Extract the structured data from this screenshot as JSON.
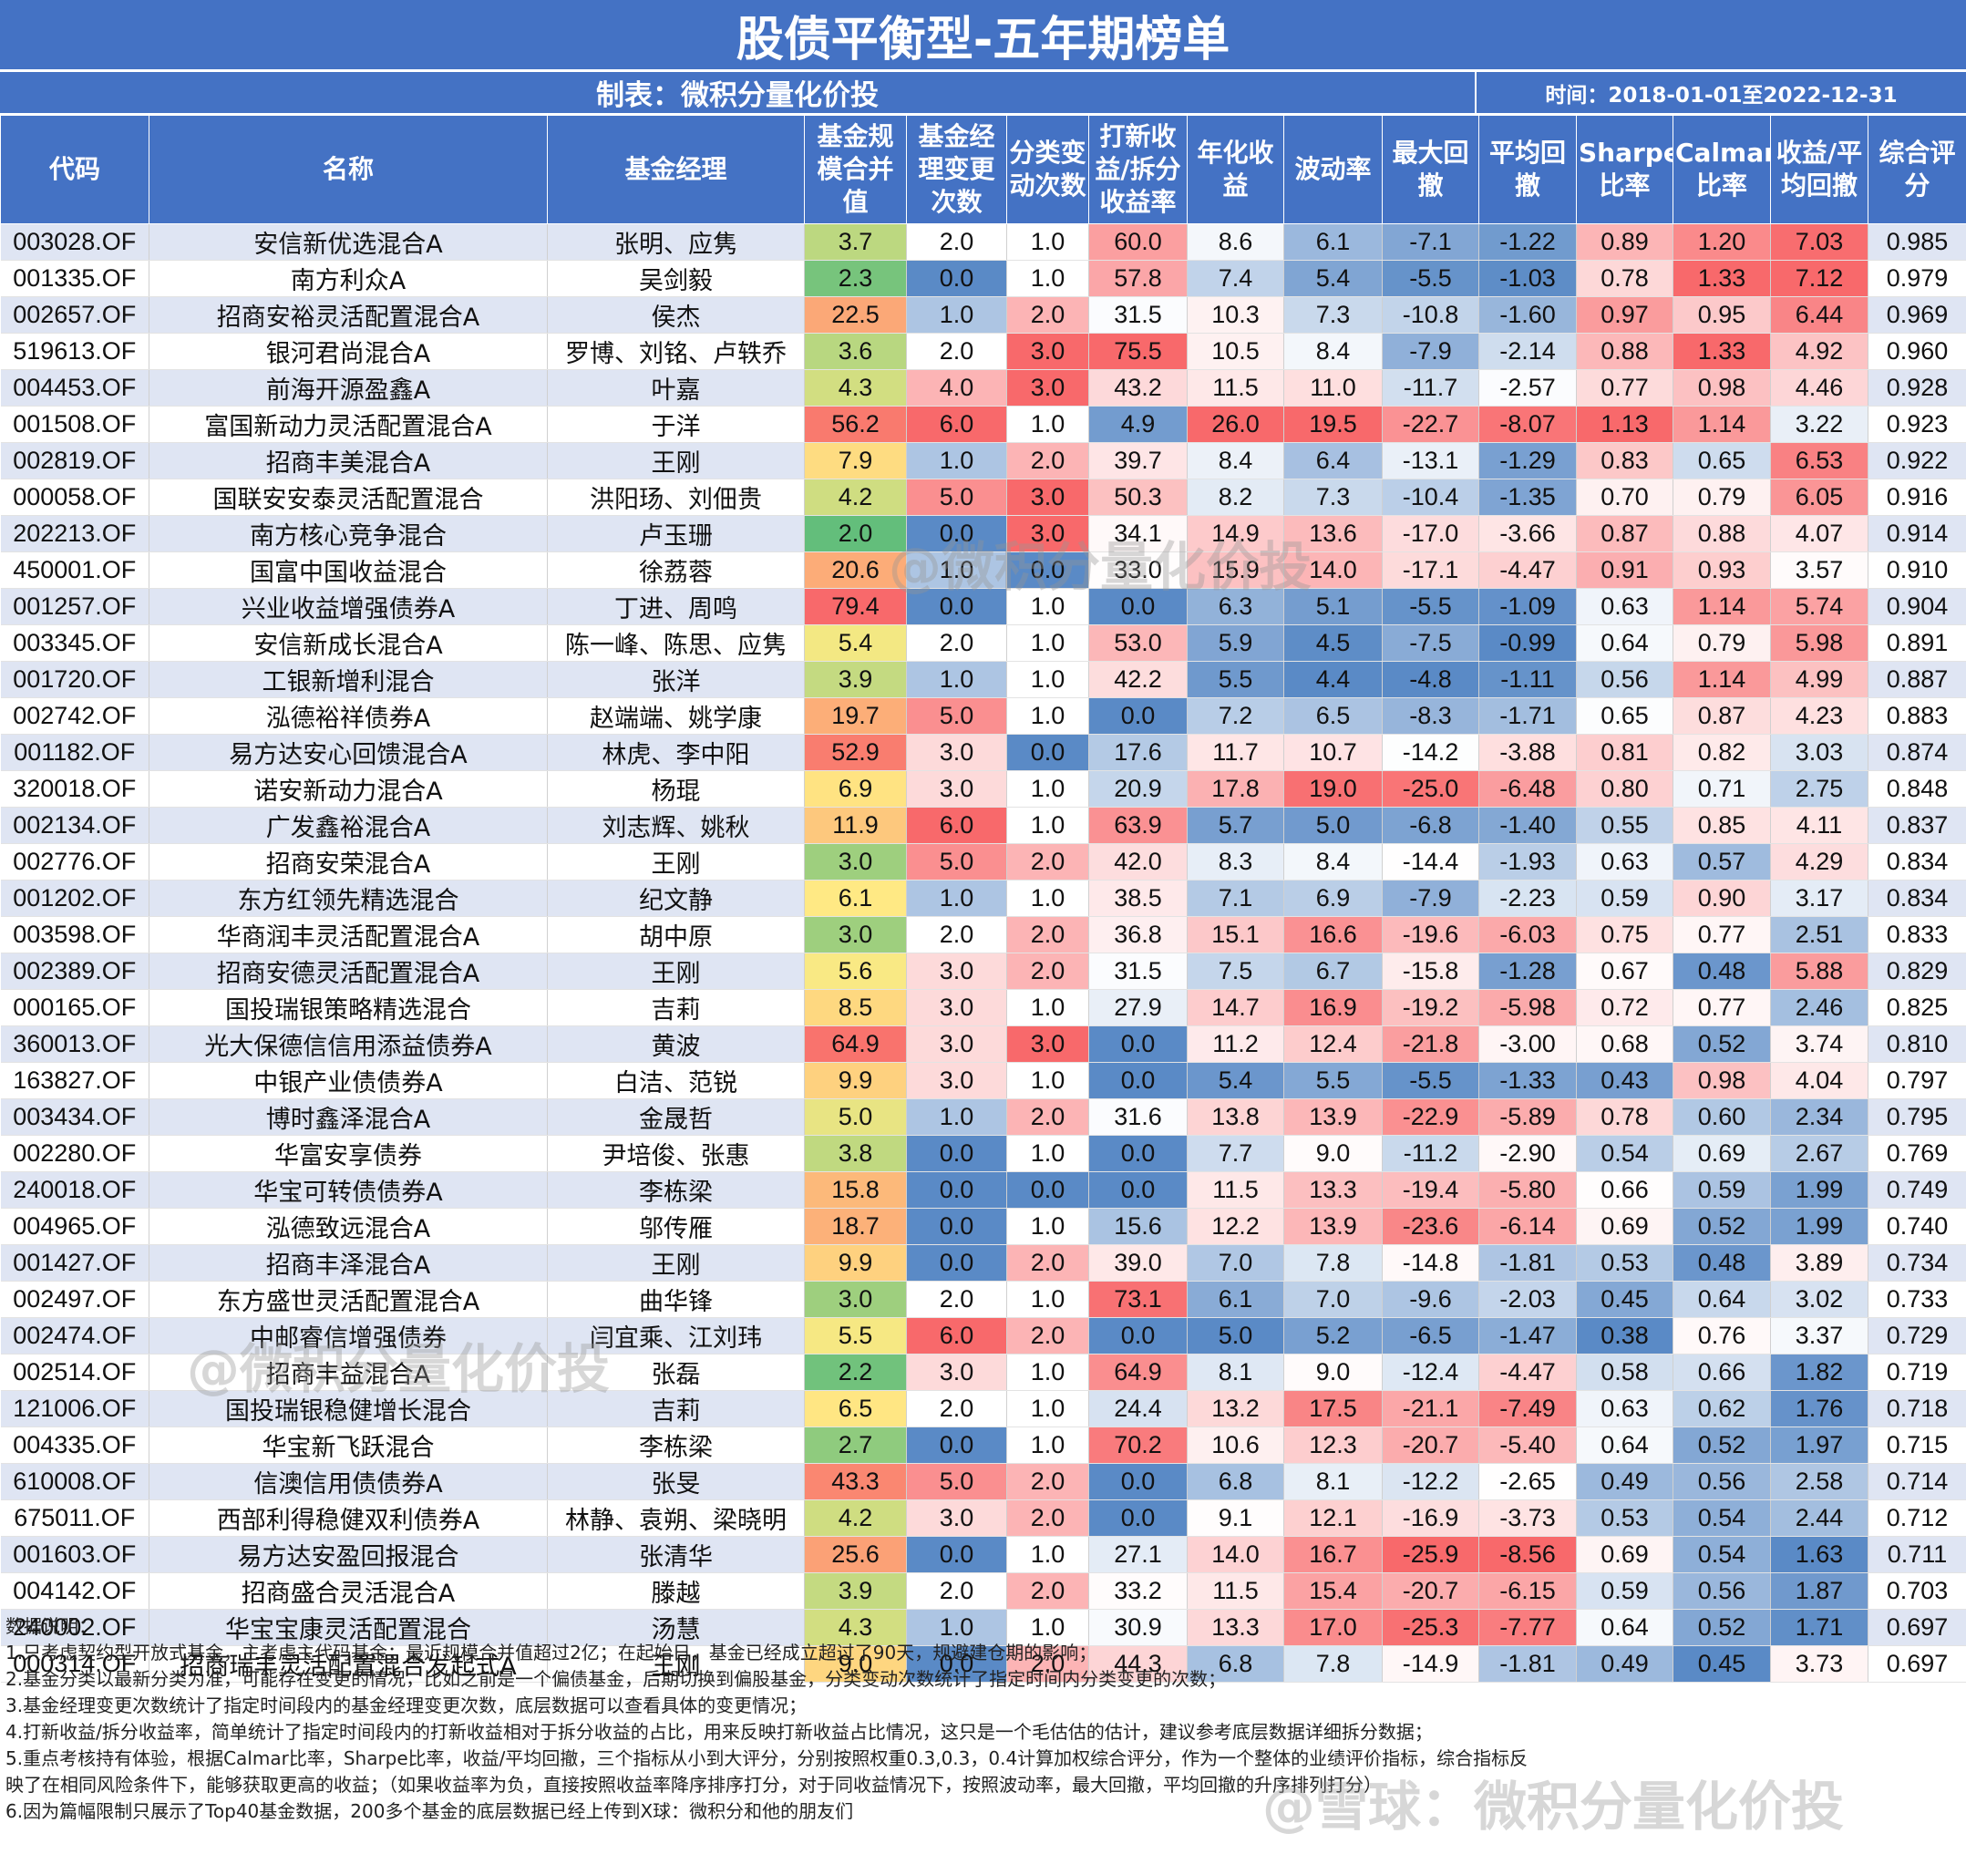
{
  "title": "股债平衡型-五年期榜单",
  "maker": "制表：微积分量化价投",
  "time": "时间：2018-01-01至2022-12-31",
  "columns": [
    "代码",
    "名称",
    "基金经理",
    "基金规模合并值",
    "基金经理变更次数",
    "分类变动次数",
    "打新收益/拆分收益率",
    "年化收益",
    "波动率",
    "最大回撤",
    "平均回撤",
    "Sharpe比率",
    "Calmar比率",
    "收益/平均回撤",
    "综合评分"
  ],
  "rows": [
    [
      "003028.OF",
      "安信新优选混合A",
      "张明、应隽",
      "3.7",
      "2.0",
      "1.0",
      "60.0",
      "8.6",
      "6.1",
      "-7.1",
      "-1.22",
      "0.89",
      "1.20",
      "7.03",
      "0.985"
    ],
    [
      "001335.OF",
      "南方利众A",
      "吴剑毅",
      "2.3",
      "0.0",
      "1.0",
      "57.8",
      "7.4",
      "5.4",
      "-5.5",
      "-1.03",
      "0.78",
      "1.33",
      "7.12",
      "0.979"
    ],
    [
      "002657.OF",
      "招商安裕灵活配置混合A",
      "侯杰",
      "22.5",
      "1.0",
      "2.0",
      "31.5",
      "10.3",
      "7.3",
      "-10.8",
      "-1.60",
      "0.97",
      "0.95",
      "6.44",
      "0.969"
    ],
    [
      "519613.OF",
      "银河君尚混合A",
      "罗博、刘铭、卢轶乔",
      "3.6",
      "2.0",
      "3.0",
      "75.5",
      "10.5",
      "8.4",
      "-7.9",
      "-2.14",
      "0.88",
      "1.33",
      "4.92",
      "0.960"
    ],
    [
      "004453.OF",
      "前海开源盈鑫A",
      "叶嘉",
      "4.3",
      "4.0",
      "3.0",
      "43.2",
      "11.5",
      "11.0",
      "-11.7",
      "-2.57",
      "0.77",
      "0.98",
      "4.46",
      "0.928"
    ],
    [
      "001508.OF",
      "富国新动力灵活配置混合A",
      "于洋",
      "56.2",
      "6.0",
      "1.0",
      "4.9",
      "26.0",
      "19.5",
      "-22.7",
      "-8.07",
      "1.13",
      "1.14",
      "3.22",
      "0.923"
    ],
    [
      "002819.OF",
      "招商丰美混合A",
      "王刚",
      "7.9",
      "1.0",
      "2.0",
      "39.7",
      "8.4",
      "6.4",
      "-13.1",
      "-1.29",
      "0.83",
      "0.65",
      "6.53",
      "0.922"
    ],
    [
      "000058.OF",
      "国联安安泰灵活配置混合",
      "洪阳玚、刘佃贵",
      "4.2",
      "5.0",
      "3.0",
      "50.3",
      "8.2",
      "7.3",
      "-10.4",
      "-1.35",
      "0.70",
      "0.79",
      "6.05",
      "0.916"
    ],
    [
      "202213.OF",
      "南方核心竞争混合",
      "卢玉珊",
      "2.0",
      "0.0",
      "3.0",
      "34.1",
      "14.9",
      "13.6",
      "-17.0",
      "-3.66",
      "0.87",
      "0.88",
      "4.07",
      "0.914"
    ],
    [
      "450001.OF",
      "国富中国收益混合",
      "徐荔蓉",
      "20.6",
      "1.0",
      "0.0",
      "33.0",
      "15.9",
      "14.0",
      "-17.1",
      "-4.47",
      "0.91",
      "0.93",
      "3.57",
      "0.910"
    ],
    [
      "001257.OF",
      "兴业收益增强债券A",
      "丁进、周鸣",
      "79.4",
      "0.0",
      "1.0",
      "0.0",
      "6.3",
      "5.1",
      "-5.5",
      "-1.09",
      "0.63",
      "1.14",
      "5.74",
      "0.904"
    ],
    [
      "003345.OF",
      "安信新成长混合A",
      "陈一峰、陈思、应隽",
      "5.4",
      "2.0",
      "1.0",
      "53.0",
      "5.9",
      "4.5",
      "-7.5",
      "-0.99",
      "0.64",
      "0.79",
      "5.98",
      "0.891"
    ],
    [
      "001720.OF",
      "工银新增利混合",
      "张洋",
      "3.9",
      "1.0",
      "1.0",
      "42.2",
      "5.5",
      "4.4",
      "-4.8",
      "-1.11",
      "0.56",
      "1.14",
      "4.99",
      "0.887"
    ],
    [
      "002742.OF",
      "泓德裕祥债券A",
      "赵端端、姚学康",
      "19.7",
      "5.0",
      "1.0",
      "0.0",
      "7.2",
      "6.5",
      "-8.3",
      "-1.71",
      "0.65",
      "0.87",
      "4.23",
      "0.883"
    ],
    [
      "001182.OF",
      "易方达安心回馈混合A",
      "林虎、李中阳",
      "52.9",
      "3.0",
      "0.0",
      "17.6",
      "11.7",
      "10.7",
      "-14.2",
      "-3.88",
      "0.81",
      "0.82",
      "3.03",
      "0.874"
    ],
    [
      "320018.OF",
      "诺安新动力混合A",
      "杨琨",
      "6.9",
      "3.0",
      "1.0",
      "20.9",
      "17.8",
      "19.0",
      "-25.0",
      "-6.48",
      "0.80",
      "0.71",
      "2.75",
      "0.848"
    ],
    [
      "002134.OF",
      "广发鑫裕混合A",
      "刘志辉、姚秋",
      "11.9",
      "6.0",
      "1.0",
      "63.9",
      "5.7",
      "5.0",
      "-6.8",
      "-1.40",
      "0.55",
      "0.85",
      "4.11",
      "0.837"
    ],
    [
      "002776.OF",
      "招商安荣混合A",
      "王刚",
      "3.0",
      "5.0",
      "2.0",
      "42.0",
      "8.3",
      "8.4",
      "-14.4",
      "-1.93",
      "0.63",
      "0.57",
      "4.29",
      "0.834"
    ],
    [
      "001202.OF",
      "东方红领先精选混合",
      "纪文静",
      "6.1",
      "1.0",
      "1.0",
      "38.5",
      "7.1",
      "6.9",
      "-7.9",
      "-2.23",
      "0.59",
      "0.90",
      "3.17",
      "0.834"
    ],
    [
      "003598.OF",
      "华商润丰灵活配置混合A",
      "胡中原",
      "3.0",
      "2.0",
      "2.0",
      "36.8",
      "15.1",
      "16.6",
      "-19.6",
      "-6.03",
      "0.75",
      "0.77",
      "2.51",
      "0.833"
    ],
    [
      "002389.OF",
      "招商安德灵活配置混合A",
      "王刚",
      "5.6",
      "3.0",
      "2.0",
      "31.5",
      "7.5",
      "6.7",
      "-15.8",
      "-1.28",
      "0.67",
      "0.48",
      "5.88",
      "0.829"
    ],
    [
      "000165.OF",
      "国投瑞银策略精选混合",
      "吉莉",
      "8.5",
      "3.0",
      "1.0",
      "27.9",
      "14.7",
      "16.9",
      "-19.2",
      "-5.98",
      "0.72",
      "0.77",
      "2.46",
      "0.825"
    ],
    [
      "360013.OF",
      "光大保德信信用添益债券A",
      "黄波",
      "64.9",
      "3.0",
      "3.0",
      "0.0",
      "11.2",
      "12.4",
      "-21.8",
      "-3.00",
      "0.68",
      "0.52",
      "3.74",
      "0.810"
    ],
    [
      "163827.OF",
      "中银产业债债券A",
      "白洁、范锐",
      "9.9",
      "3.0",
      "1.0",
      "0.0",
      "5.4",
      "5.5",
      "-5.5",
      "-1.33",
      "0.43",
      "0.98",
      "4.04",
      "0.797"
    ],
    [
      "003434.OF",
      "博时鑫泽混合A",
      "金晟哲",
      "5.0",
      "1.0",
      "2.0",
      "31.6",
      "13.8",
      "13.9",
      "-22.9",
      "-5.89",
      "0.78",
      "0.60",
      "2.34",
      "0.795"
    ],
    [
      "002280.OF",
      "华富安享债券",
      "尹培俊、张惠",
      "3.8",
      "0.0",
      "1.0",
      "0.0",
      "7.7",
      "9.0",
      "-11.2",
      "-2.90",
      "0.54",
      "0.69",
      "2.67",
      "0.769"
    ],
    [
      "240018.OF",
      "华宝可转债债券A",
      "李栋梁",
      "15.8",
      "0.0",
      "0.0",
      "0.0",
      "11.5",
      "13.3",
      "-19.4",
      "-5.80",
      "0.66",
      "0.59",
      "1.99",
      "0.749"
    ],
    [
      "004965.OF",
      "泓德致远混合A",
      "邬传雁",
      "18.7",
      "0.0",
      "1.0",
      "15.6",
      "12.2",
      "13.9",
      "-23.6",
      "-6.14",
      "0.69",
      "0.52",
      "1.99",
      "0.740"
    ],
    [
      "001427.OF",
      "招商丰泽混合A",
      "王刚",
      "9.9",
      "0.0",
      "2.0",
      "39.0",
      "7.0",
      "7.8",
      "-14.8",
      "-1.81",
      "0.53",
      "0.48",
      "3.89",
      "0.734"
    ],
    [
      "002497.OF",
      "东方盛世灵活配置混合A",
      "曲华锋",
      "3.0",
      "2.0",
      "1.0",
      "73.1",
      "6.1",
      "7.0",
      "-9.6",
      "-2.03",
      "0.45",
      "0.64",
      "3.02",
      "0.733"
    ],
    [
      "002474.OF",
      "中邮睿信增强债券",
      "闫宜乘、江刘玮",
      "5.5",
      "6.0",
      "2.0",
      "0.0",
      "5.0",
      "5.2",
      "-6.5",
      "-1.47",
      "0.38",
      "0.76",
      "3.37",
      "0.729"
    ],
    [
      "002514.OF",
      "招商丰益混合A",
      "张磊",
      "2.2",
      "3.0",
      "1.0",
      "64.9",
      "8.1",
      "9.0",
      "-12.4",
      "-4.47",
      "0.58",
      "0.66",
      "1.82",
      "0.719"
    ],
    [
      "121006.OF",
      "国投瑞银稳健增长混合",
      "吉莉",
      "6.5",
      "2.0",
      "1.0",
      "24.4",
      "13.2",
      "17.5",
      "-21.1",
      "-7.49",
      "0.63",
      "0.62",
      "1.76",
      "0.718"
    ],
    [
      "004335.OF",
      "华宝新飞跃混合",
      "李栋梁",
      "2.7",
      "0.0",
      "1.0",
      "70.2",
      "10.6",
      "12.3",
      "-20.7",
      "-5.40",
      "0.64",
      "0.52",
      "1.97",
      "0.715"
    ],
    [
      "610008.OF",
      "信澳信用债债券A",
      "张旻",
      "43.3",
      "5.0",
      "2.0",
      "0.0",
      "6.8",
      "8.1",
      "-12.2",
      "-2.65",
      "0.49",
      "0.56",
      "2.58",
      "0.714"
    ],
    [
      "675011.OF",
      "西部利得稳健双利债券A",
      "林静、袁朔、梁晓明",
      "4.2",
      "3.0",
      "2.0",
      "0.0",
      "9.1",
      "12.1",
      "-16.9",
      "-3.73",
      "0.53",
      "0.54",
      "2.44",
      "0.712"
    ],
    [
      "001603.OF",
      "易方达安盈回报混合",
      "张清华",
      "25.6",
      "0.0",
      "1.0",
      "27.1",
      "14.0",
      "16.7",
      "-25.9",
      "-8.56",
      "0.69",
      "0.54",
      "1.63",
      "0.711"
    ],
    [
      "004142.OF",
      "招商盛合灵活混合A",
      "滕越",
      "3.9",
      "2.0",
      "2.0",
      "33.2",
      "11.5",
      "15.4",
      "-20.7",
      "-6.15",
      "0.59",
      "0.56",
      "1.87",
      "0.703"
    ],
    [
      "240002.OF",
      "华宝宝康灵活配置混合",
      "汤慧",
      "4.3",
      "1.0",
      "1.0",
      "30.9",
      "13.3",
      "17.0",
      "-25.3",
      "-7.77",
      "0.64",
      "0.52",
      "1.71",
      "0.697"
    ],
    [
      "000314.OF",
      "招商瑞丰灵活配置混合发起式A",
      "王刚",
      "9.0",
      "0.0",
      "2.0",
      "44.3",
      "6.8",
      "7.8",
      "-14.9",
      "-1.81",
      "0.49",
      "0.45",
      "3.73",
      "0.697"
    ]
  ],
  "notes": [
    "数据说明：",
    "1.只考虑契约型开放式基金，主考虑主代码基金；最近规模合并值超过2亿；在起始日，基金已经成立超过了90天，规避建仓期的影响；",
    "2.基金分类以最新分类为准，可能存在变更的情况，比如之前是一个偏债基金，后期切换到偏股基金，分类变动次数统计了指定时间内分类变更的次数；",
    "3.基金经理变更次数统计了指定时间段内的基金经理变更次数，底层数据可以查看具体的变更情况；",
    "4.打新收益/拆分收益率，简单统计了指定时间段内的打新收益相对于拆分收益的占比，用来反映打新收益占比情况，这只是一个毛估估的估计，建议参考底层数据详细拆分数据；",
    "5.重点考核持有体验，根据Calmar比率，Sharpe比率，收益/平均回撤，三个指标从小到大评分，分别按照权重0.3,0.3，0.4计算加权综合评分，作为一个整体的业绩评价指标，综合指标反",
    "映了在相同风险条件下，能够获取更高的收益；（如果收益率为负，直接按照收益率降序排序打分，对于同收益情况下，按照波动率，最大回撤，平均回撤的升序排列打分）",
    "6.因为篇幅限制只展示了Top40基金数据，200多个基金的底层数据已经上传到X球：微积分和他的朋友们"
  ],
  "watermarks": [
    "@微积分量化价投",
    "@微积分量化价投",
    "@雪球：微积分量化价投"
  ],
  "scale_colors": {
    "red": "#f8696b",
    "white": "#ffffff",
    "blue": "#5a8ac6",
    "green": "#63be7b",
    "yellow": "#ffeb84"
  }
}
